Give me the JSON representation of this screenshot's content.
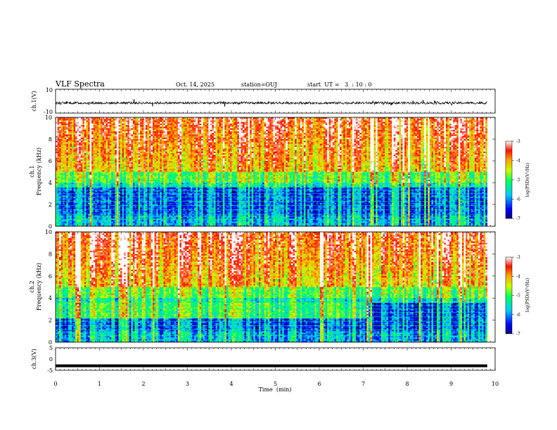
{
  "header": {
    "title": "VLF Spectra",
    "date": "Oct. 14, 2025",
    "station": "station=OUJ",
    "start": "start  UT =   3  : 10 : 0"
  },
  "chart_data": {
    "type": "heatmap",
    "xlabel": "Time  (min)",
    "xlim": [
      0,
      10
    ],
    "x_ticks": [
      "0",
      "1",
      "2",
      "3",
      "4",
      "5",
      "6",
      "7",
      "8",
      "9",
      "10"
    ],
    "data_end_min": 9.82,
    "panels": [
      {
        "id": "ch1-waveform",
        "type": "line",
        "ylabel": "ch.1(V)",
        "ylim": [
          -10,
          10
        ],
        "y_ticks": [
          "10",
          "-10"
        ],
        "baseline_v": -1.5,
        "noise_amplitude_v": 1.0
      },
      {
        "id": "ch1-spectrogram",
        "type": "heatmap",
        "ylabel_top": "ch.1",
        "ylabel": "Frequency  (kHz)",
        "ylim": [
          0,
          10
        ],
        "y_ticks": [
          "0",
          "2",
          "4",
          "6",
          "8",
          "10"
        ],
        "colorbar": {
          "label": "log(PSD)(V²/Hz)",
          "range": [
            -7,
            -3
          ],
          "ticks": [
            "-3",
            "-4",
            "-5",
            "-6",
            "-7"
          ]
        }
      },
      {
        "id": "ch2-spectrogram",
        "type": "heatmap",
        "ylabel_top": "ch.2",
        "ylabel": "Frequency  (kHz)",
        "ylim": [
          0,
          10
        ],
        "y_ticks": [
          "0",
          "2",
          "4",
          "6",
          "8",
          "10"
        ],
        "colorbar": {
          "label": "log(PSD)(V²/Hz)",
          "range": [
            -7,
            -3
          ],
          "ticks": [
            "-3",
            "-4",
            "-5",
            "-6",
            "-7"
          ]
        }
      },
      {
        "id": "ch3-waveform",
        "type": "line",
        "ylabel": "ch.3(V)",
        "ylim": [
          -5,
          5
        ],
        "y_ticks": [
          "5",
          "0",
          "-5"
        ],
        "baseline_v": -3.0
      }
    ]
  }
}
